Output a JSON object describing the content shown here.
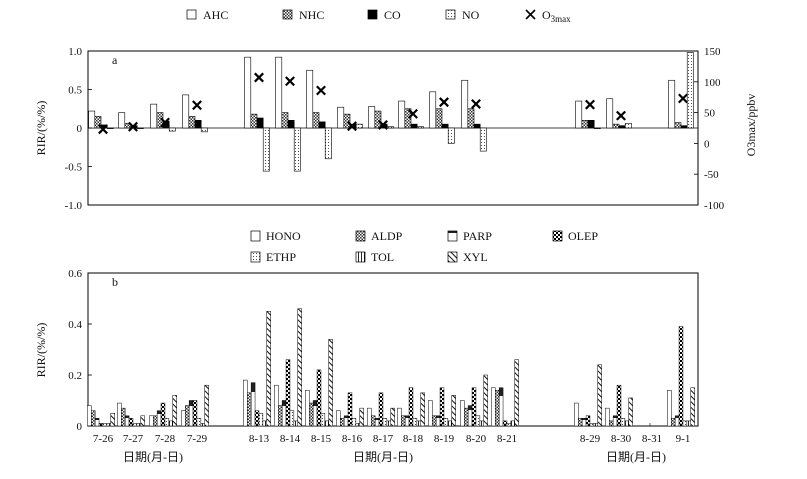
{
  "chart_data": [
    {
      "type": "bar",
      "panel_label": "a",
      "ylabel": "RIR/(%/%)",
      "y2label": "O3max/ppbv",
      "ylim": [
        -1.0,
        1.0
      ],
      "yticks": [
        "1.0",
        "0.5",
        "0",
        "-0.5",
        "-1.0"
      ],
      "yticks_values": [
        1.0,
        0.5,
        0,
        -0.5,
        -1.0
      ],
      "y2lim": [
        -100,
        150
      ],
      "y2ticks": [
        "150",
        "100",
        "50",
        "0",
        "-50",
        "-100"
      ],
      "y2ticks_values": [
        150,
        100,
        50,
        0,
        -50,
        -100
      ],
      "legend": [
        {
          "name": "AHC",
          "pattern": "white"
        },
        {
          "name": "NHC",
          "pattern": "gray"
        },
        {
          "name": "CO",
          "pattern": "black"
        },
        {
          "name": "NO",
          "pattern": "dots"
        },
        {
          "name": "O3max",
          "marker": "X"
        }
      ],
      "categories": [
        "7-26",
        "7-27",
        "7-28",
        "7-29",
        "8-13",
        "8-14",
        "8-15",
        "8-16",
        "8-17",
        "8-18",
        "8-19",
        "8-20",
        "8-21",
        "8-29",
        "8-30",
        "8-31",
        "9-1"
      ],
      "series": [
        {
          "name": "AHC",
          "pattern": "white",
          "values": [
            0.22,
            0.2,
            0.31,
            0.43,
            0.92,
            0.92,
            0.75,
            0.27,
            0.28,
            0.35,
            0.47,
            0.62,
            null,
            0.35,
            0.38,
            null,
            0.62
          ]
        },
        {
          "name": "NHC",
          "pattern": "gray",
          "values": [
            0.15,
            0.06,
            0.2,
            0.15,
            0.18,
            0.2,
            0.2,
            0.18,
            0.22,
            0.25,
            0.25,
            0.25,
            null,
            0.1,
            0.05,
            null,
            0.07
          ]
        },
        {
          "name": "CO",
          "pattern": "black",
          "values": [
            0.04,
            0.03,
            0.09,
            0.1,
            0.13,
            0.1,
            0.08,
            0.05,
            0.05,
            0.05,
            0.05,
            0.05,
            null,
            0.1,
            0.03,
            null,
            0.03
          ]
        },
        {
          "name": "NO",
          "pattern": "dots",
          "values": [
            0.0,
            0.0,
            -0.04,
            -0.05,
            -0.56,
            -0.56,
            -0.4,
            0.05,
            0.02,
            0.02,
            -0.2,
            -0.3,
            null,
            0.0,
            0.06,
            null,
            0.98
          ]
        }
      ],
      "o3max": {
        "name": "O3max",
        "values": [
          23,
          27,
          34,
          62,
          107,
          101,
          86,
          28,
          30,
          48,
          67,
          64,
          null,
          63,
          45,
          null,
          73
        ]
      }
    },
    {
      "type": "bar",
      "panel_label": "b",
      "ylabel": "RIR/(%/%)",
      "ylim": [
        0,
        0.6
      ],
      "yticks": [
        "0.6",
        "0.4",
        "0.2",
        "0"
      ],
      "yticks_values": [
        0.6,
        0.4,
        0.2,
        0
      ],
      "xlabel": "日期(月-日)",
      "legend": [
        {
          "name": "HONO",
          "pattern": "white"
        },
        {
          "name": "ALDP",
          "pattern": "gray"
        },
        {
          "name": "PARP",
          "pattern": "half"
        },
        {
          "name": "OLEP",
          "pattern": "check"
        },
        {
          "name": "ETHP",
          "pattern": "dots"
        },
        {
          "name": "TOL",
          "pattern": "vlines"
        },
        {
          "name": "XYL",
          "pattern": "hatch"
        }
      ],
      "categories": [
        "7-26",
        "7-27",
        "7-28",
        "7-29",
        "8-13",
        "8-14",
        "8-15",
        "8-16",
        "8-17",
        "8-18",
        "8-19",
        "8-20",
        "8-21",
        "8-29",
        "8-30",
        "8-31",
        "9-1"
      ],
      "series": [
        {
          "name": "HONO",
          "pattern": "white",
          "values": [
            0.08,
            0.09,
            0.04,
            0.06,
            0.18,
            0.16,
            0.14,
            0.06,
            0.07,
            0.07,
            0.1,
            0.1,
            0.15,
            0.09,
            0.07,
            null,
            0.14
          ]
        },
        {
          "name": "ALDP",
          "pattern": "gray",
          "values": [
            0.06,
            0.07,
            0.04,
            0.08,
            0.13,
            0.08,
            0.09,
            0.03,
            0.04,
            0.04,
            0.04,
            0.07,
            0.14,
            0.03,
            0.02,
            null,
            0.03
          ]
        },
        {
          "name": "PARP",
          "pattern": "half",
          "values": [
            0.03,
            0.04,
            0.06,
            0.1,
            0.17,
            0.1,
            0.1,
            0.04,
            0.03,
            0.04,
            0.04,
            0.08,
            0.15,
            0.03,
            0.04,
            null,
            0.04
          ]
        },
        {
          "name": "OLEP",
          "pattern": "check",
          "values": [
            0.01,
            0.03,
            0.09,
            0.1,
            0.06,
            0.26,
            0.22,
            0.13,
            0.13,
            0.15,
            0.15,
            0.15,
            0.02,
            0.04,
            0.16,
            null,
            0.39
          ]
        },
        {
          "name": "ETHP",
          "pattern": "dots",
          "values": [
            0.01,
            0.01,
            0.03,
            0.03,
            0.05,
            0.06,
            0.05,
            0.03,
            0.03,
            0.03,
            0.03,
            0.04,
            0.01,
            0.01,
            0.03,
            null,
            0.02
          ]
        },
        {
          "name": "TOL",
          "pattern": "vlines",
          "values": [
            0.01,
            0.01,
            0.02,
            0.01,
            0.02,
            0.02,
            0.02,
            0.01,
            0.02,
            0.02,
            0.02,
            0.02,
            0.02,
            0.01,
            0.02,
            null,
            0.02
          ]
        },
        {
          "name": "XYL",
          "pattern": "hatch",
          "values": [
            0.05,
            0.04,
            0.12,
            0.16,
            0.45,
            0.46,
            0.34,
            0.07,
            0.07,
            0.13,
            0.12,
            0.2,
            0.26,
            0.24,
            0.11,
            null,
            0.15
          ]
        }
      ]
    }
  ]
}
